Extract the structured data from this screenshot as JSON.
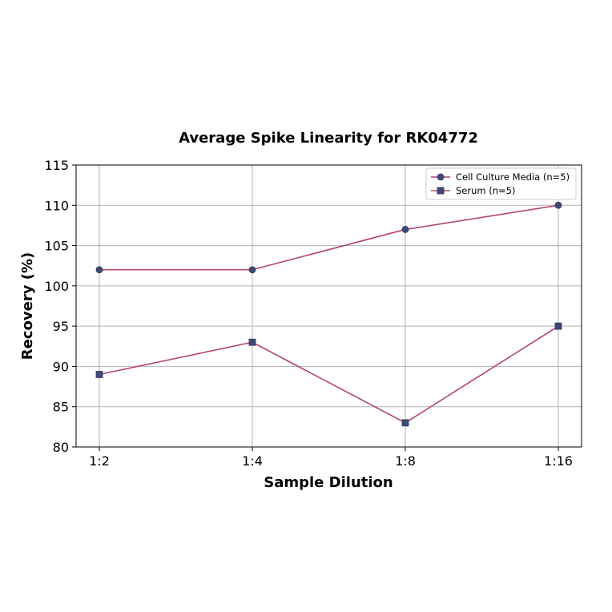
{
  "chart_data": {
    "type": "line",
    "title": "Average Spike Linearity for RK04772",
    "xlabel": "Sample Dilution",
    "ylabel": "Recovery (%)",
    "categories": [
      "1:2",
      "1:4",
      "1:8",
      "1:16"
    ],
    "ylim": [
      80,
      115
    ],
    "yticks": [
      80,
      85,
      90,
      95,
      100,
      105,
      110,
      115
    ],
    "grid": true,
    "legend_position": "top-right",
    "series": [
      {
        "name": "Cell Culture Media (n=5)",
        "values": [
          102,
          102,
          107,
          110
        ],
        "marker": "circle"
      },
      {
        "name": "Serum (n=5)",
        "values": [
          89,
          93,
          83,
          95
        ],
        "marker": "square"
      }
    ],
    "colors": {
      "line": "#b5456b",
      "marker_fill": "#3d4a78",
      "grid": "#b0b0b0"
    }
  }
}
